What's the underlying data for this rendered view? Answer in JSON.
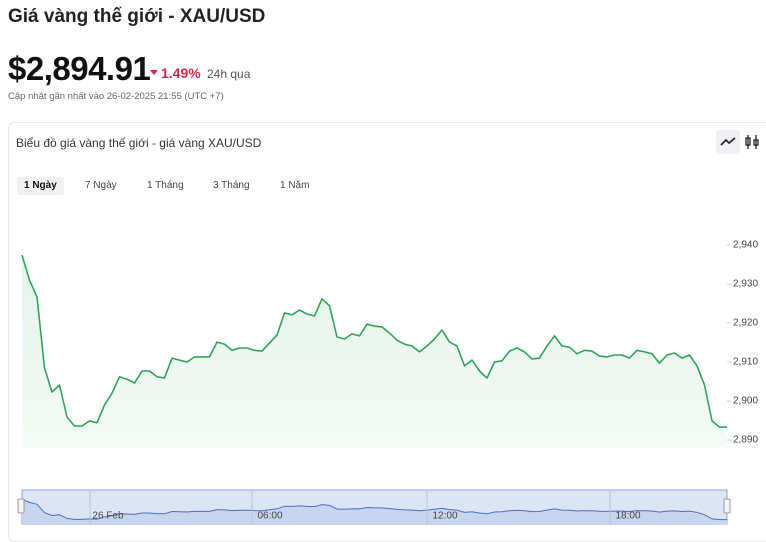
{
  "header": {
    "title": "Giá vàng thế giới - XAU/USD",
    "price": "$2,894.91",
    "change": "1.49%",
    "period": "24h qua",
    "updated": "Cập nhật gần nhất vào 26-02-2025 21:55 (UTC +7)"
  },
  "tabs": [
    "1 Ngày",
    "7 Ngày",
    "1 Tháng",
    "3 Tháng",
    "1 Năm"
  ],
  "chart_data": {
    "type": "line",
    "title": "Biểu đồ giá vàng thế giới - giá vàng XAU/USD",
    "color": "#2ea45a",
    "values": [
      2937.4,
      2931,
      2926.7,
      2908.5,
      2902.3,
      2904.1,
      2895.9,
      2893.6,
      2893.6,
      2894.9,
      2894.4,
      2899,
      2902,
      2906.2,
      2905.6,
      2904.6,
      2907.7,
      2907.7,
      2906.2,
      2905.9,
      2911,
      2910.5,
      2910,
      2911.3,
      2911.3,
      2911.3,
      2915.1,
      2914.6,
      2913,
      2913.6,
      2913.6,
      2913,
      2912.8,
      2914.9,
      2916.9,
      2922.6,
      2922.1,
      2923.3,
      2922.3,
      2921.8,
      2926.2,
      2924.4,
      2916.4,
      2915.9,
      2917.2,
      2916.7,
      2919.7,
      2919.2,
      2919,
      2917.4,
      2915.6,
      2914.6,
      2914.1,
      2912.6,
      2914.1,
      2915.9,
      2918.2,
      2915.1,
      2914.1,
      2909,
      2910.5,
      2907.7,
      2905.9,
      2910,
      2910.3,
      2912.8,
      2913.6,
      2912.6,
      2910.8,
      2911,
      2914.1,
      2916.7,
      2914.1,
      2913.8,
      2912.1,
      2913,
      2912.8,
      2911.5,
      2911.3,
      2911.8,
      2911.8,
      2911,
      2913,
      2912.6,
      2912.1,
      2909.7,
      2911.8,
      2912.3,
      2911,
      2911.8,
      2909,
      2904.1,
      2894.9,
      2893.3,
      2893.3
    ],
    "ylim": [
      2888,
      2945
    ],
    "yticks": [
      {
        "value": 2890,
        "label": "2,890"
      },
      {
        "value": 2900,
        "label": "2,900"
      },
      {
        "value": 2910,
        "label": "2,910"
      },
      {
        "value": 2920,
        "label": "2,920"
      },
      {
        "value": 2930,
        "label": "2,930"
      },
      {
        "value": 2940,
        "label": "2,940"
      }
    ],
    "navigator_labels": [
      "26 Feb",
      "06:00",
      "12:00",
      "18:00"
    ]
  }
}
